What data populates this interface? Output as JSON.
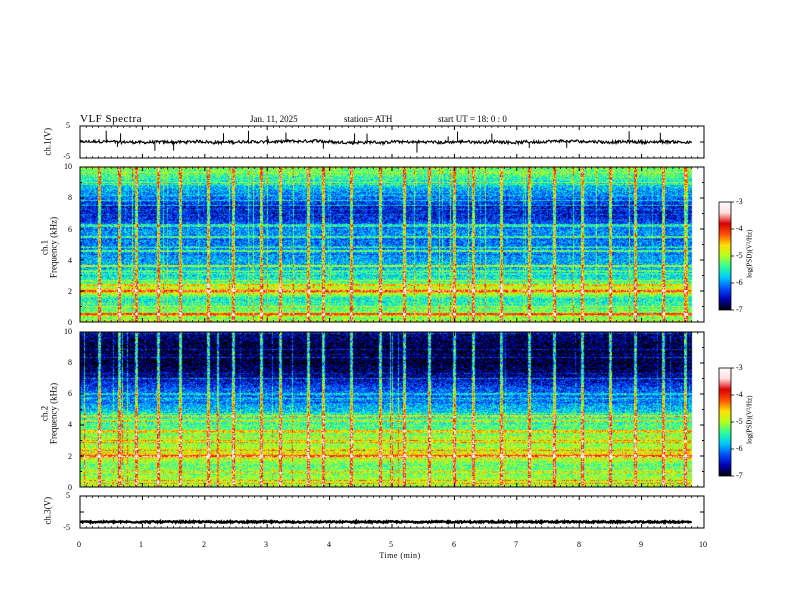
{
  "header": {
    "title": "VLF  Spectra",
    "date": "Jan. 11, 2025",
    "station": "station= ATH",
    "start_ut": "start  UT  =    18: 0  : 0"
  },
  "panels": {
    "ch1_waveform": {
      "ylabel": "ch.1(V)",
      "yticks": [
        "5",
        "-5"
      ]
    },
    "ch1_spectrogram": {
      "ylabel_line1": "ch.1",
      "ylabel_line2": "Frequency  (kHz)",
      "yticks": [
        "10",
        "8",
        "6",
        "4",
        "2",
        "0"
      ]
    },
    "ch2_spectrogram": {
      "ylabel_line1": "ch.2",
      "ylabel_line2": "Frequency  (kHz)",
      "yticks": [
        "10",
        "8",
        "6",
        "4",
        "2",
        "0"
      ]
    },
    "ch3_waveform": {
      "ylabel": "ch.3(V)",
      "yticks": [
        "5",
        "-5"
      ]
    }
  },
  "xaxis": {
    "label": "Time  (min)",
    "ticks": [
      "0",
      "1",
      "2",
      "3",
      "4",
      "5",
      "6",
      "7",
      "8",
      "9",
      "10"
    ]
  },
  "colorbar": {
    "label": "log(PSD)(V²/Hz)",
    "ticks": [
      "-3",
      "-4",
      "-5",
      "-6",
      "-7"
    ],
    "colors": [
      "#000000",
      "#0000b4",
      "#0050ff",
      "#00c8ff",
      "#28ff9a",
      "#b4ff1e",
      "#ffe000",
      "#ff5000",
      "#dc0000",
      "#ffdcdc",
      "#ffffff"
    ]
  },
  "chart_data": [
    {
      "type": "line",
      "title": "",
      "ylabel": "ch.1(V)",
      "xlabel": "Time  (min)",
      "xlim": [
        0,
        10
      ],
      "ylim": [
        -5,
        5
      ],
      "data_span_min": [
        0,
        9.8
      ],
      "mean_level_V": 0,
      "spike_times_min": [
        0.42,
        0.6,
        0.65,
        1.2,
        1.5,
        2.3,
        2.7,
        3.0,
        3.3,
        3.9,
        4.4,
        4.6,
        5.4,
        5.9,
        6.05,
        6.6,
        7.2,
        7.8,
        8.8,
        9.3
      ]
    },
    {
      "type": "heatmap",
      "title": "",
      "channel": "ch.1",
      "ylabel": "Frequency  (kHz)",
      "xlabel": "Time  (min)",
      "xlim": [
        0,
        10
      ],
      "ylim": [
        0,
        10
      ],
      "data_span_min": [
        0,
        9.8
      ],
      "zlabel": "log(PSD)(V²/Hz)",
      "zlim": [
        -7,
        -3
      ],
      "spectral_profile": {
        "freq_khz": [
          0.0,
          0.5,
          1.0,
          1.5,
          2.0,
          2.5,
          3.0,
          3.5,
          4.0,
          4.5,
          5.0,
          5.5,
          6.0,
          6.5,
          7.0,
          7.5,
          8.0,
          8.5,
          9.0,
          9.5,
          10.0
        ],
        "log_psd": [
          -5.2,
          -5.0,
          -5.4,
          -5.6,
          -4.6,
          -5.3,
          -5.7,
          -5.8,
          -5.9,
          -6.0,
          -6.1,
          -6.0,
          -6.0,
          -6.3,
          -6.5,
          -6.4,
          -6.1,
          -5.9,
          -5.6,
          -5.3,
          -5.2
        ]
      },
      "bands_khz": [
        {
          "freq": 0.5,
          "log_psd": -4.0
        },
        {
          "freq": 2.0,
          "log_psd": -4.2
        },
        {
          "freq": 2.4,
          "log_psd": -4.6
        },
        {
          "freq": 3.6,
          "log_psd": -5.0
        },
        {
          "freq": 4.6,
          "log_psd": -5.3
        },
        {
          "freq": 5.5,
          "log_psd": -5.4
        },
        {
          "freq": 6.2,
          "log_psd": -5.5
        }
      ],
      "sferic_times_min": [
        0.3,
        0.62,
        0.9,
        1.25,
        1.6,
        2.05,
        2.45,
        2.9,
        3.2,
        3.65,
        3.9,
        4.35,
        4.8,
        5.2,
        5.6,
        6.0,
        6.3,
        6.75,
        7.2,
        7.6,
        8.05,
        8.5,
        8.9,
        9.35,
        9.7
      ]
    },
    {
      "type": "heatmap",
      "title": "",
      "channel": "ch.2",
      "ylabel": "Frequency  (kHz)",
      "xlabel": "Time  (min)",
      "xlim": [
        0,
        10
      ],
      "ylim": [
        0,
        10
      ],
      "data_span_min": [
        0,
        9.8
      ],
      "zlabel": "log(PSD)(V²/Hz)",
      "zlim": [
        -7,
        -3
      ],
      "spectral_profile": {
        "freq_khz": [
          0.0,
          0.5,
          1.0,
          1.5,
          2.0,
          2.5,
          3.0,
          3.5,
          4.0,
          4.5,
          5.0,
          5.5,
          6.0,
          6.5,
          7.0,
          7.5,
          8.0,
          8.5,
          9.0,
          9.5,
          10.0
        ],
        "log_psd": [
          -5.0,
          -5.0,
          -5.2,
          -5.3,
          -4.5,
          -5.0,
          -5.1,
          -5.2,
          -5.4,
          -5.5,
          -5.8,
          -6.0,
          -6.1,
          -6.3,
          -6.6,
          -6.8,
          -6.9,
          -6.9,
          -6.9,
          -6.8,
          -6.7
        ]
      },
      "bands_khz": [
        {
          "freq": 2.0,
          "log_psd": -4.0
        },
        {
          "freq": 2.4,
          "log_psd": -4.4
        },
        {
          "freq": 3.0,
          "log_psd": -4.9
        },
        {
          "freq": 3.6,
          "log_psd": -4.6
        },
        {
          "freq": 4.3,
          "log_psd": -5.2
        },
        {
          "freq": 4.6,
          "log_psd": -5.0
        },
        {
          "freq": 6.0,
          "log_psd": -5.7
        }
      ],
      "sferic_times_min": [
        0.3,
        0.62,
        0.9,
        1.25,
        1.6,
        2.05,
        2.45,
        2.9,
        3.2,
        3.65,
        3.9,
        4.35,
        4.8,
        5.2,
        5.6,
        6.0,
        6.3,
        6.75,
        7.2,
        7.6,
        8.05,
        8.5,
        8.9,
        9.35,
        9.7
      ]
    },
    {
      "type": "line",
      "title": "",
      "ylabel": "ch.3(V)",
      "xlabel": "Time  (min)",
      "xlim": [
        0,
        10
      ],
      "ylim": [
        -5,
        5
      ],
      "data_span_min": [
        0,
        9.8
      ],
      "mean_level_V": -3.1
    }
  ]
}
